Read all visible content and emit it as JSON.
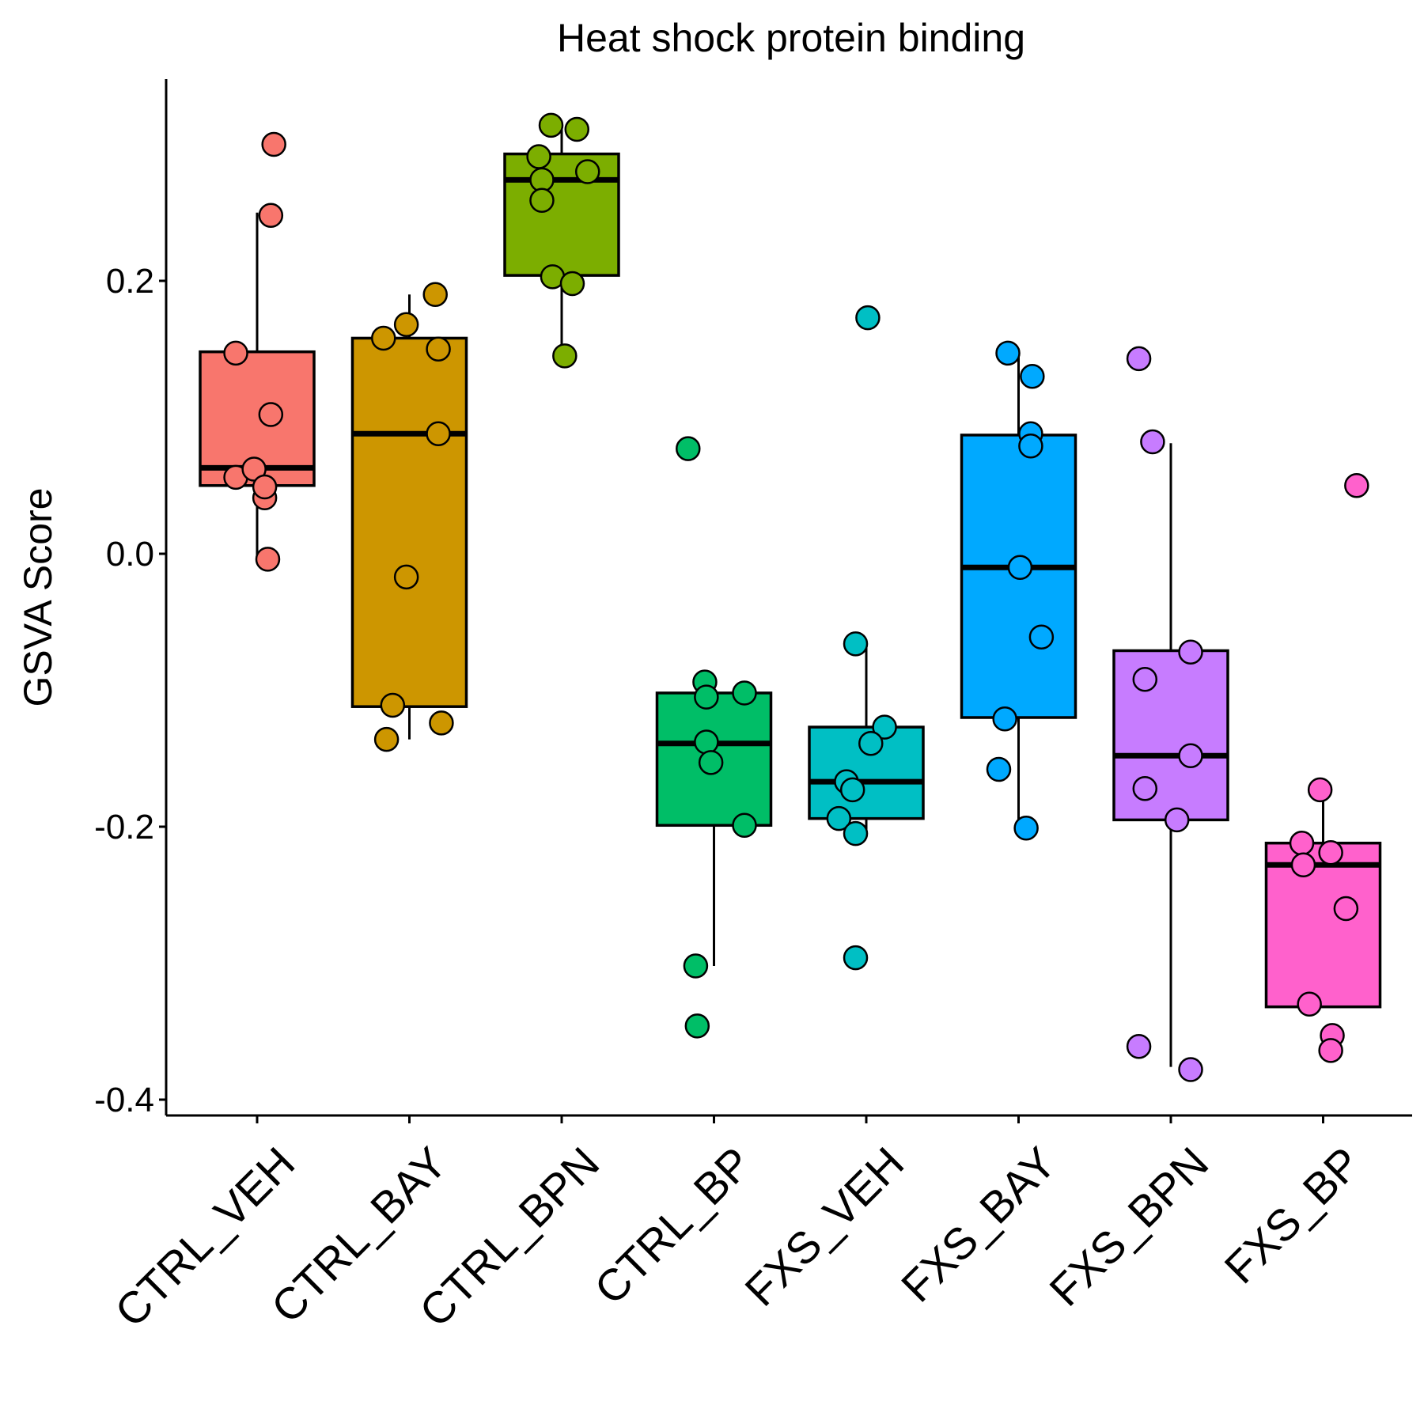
{
  "chart_data": {
    "type": "box",
    "title": "Heat shock protein binding",
    "xlabel": "",
    "ylabel": "GSVA Score",
    "ylim": [
      -0.41,
      0.35
    ],
    "yticks": [
      -0.4,
      -0.2,
      0.0,
      0.2
    ],
    "ytick_labels": [
      "-0.4",
      "-0.2",
      "0.0",
      "0.2"
    ],
    "grid": false,
    "legend": "none",
    "categories": [
      "CTRL_VEH",
      "CTRL_BAY",
      "CTRL_BPN",
      "CTRL_BP",
      "FXS_VEH",
      "FXS_BAY",
      "FXS_BPN",
      "FXS_BP"
    ],
    "colors": [
      "#F8766D",
      "#CD9600",
      "#7CAE00",
      "#00BE67",
      "#00BFC4",
      "#00A9FF",
      "#C77CFF",
      "#FF61CC"
    ],
    "boxes": [
      {
        "q1": 0.05,
        "median": 0.063,
        "q3": 0.148,
        "whisker_low": -0.004,
        "whisker_high": 0.25
      },
      {
        "q1": -0.112,
        "median": 0.088,
        "q3": 0.158,
        "whisker_low": -0.136,
        "whisker_high": 0.19
      },
      {
        "q1": 0.204,
        "median": 0.274,
        "q3": 0.293,
        "whisker_low": 0.145,
        "whisker_high": 0.314
      },
      {
        "q1": -0.199,
        "median": -0.139,
        "q3": -0.102,
        "whisker_low": -0.302,
        "whisker_high": -0.102
      },
      {
        "q1": -0.194,
        "median": -0.167,
        "q3": -0.127,
        "whisker_low": -0.205,
        "whisker_high": -0.066
      },
      {
        "q1": -0.12,
        "median": -0.01,
        "q3": 0.087,
        "whisker_low": -0.201,
        "whisker_high": 0.147
      },
      {
        "q1": -0.195,
        "median": -0.148,
        "q3": -0.071,
        "whisker_low": -0.376,
        "whisker_high": 0.081
      },
      {
        "q1": -0.332,
        "median": -0.228,
        "q3": -0.212,
        "whisker_low": -0.332,
        "whisker_high": -0.173
      }
    ],
    "points": [
      {
        "x_offset": [
          0.11,
          0.09,
          -0.14,
          0.09,
          -0.14,
          -0.02,
          0.05,
          0.05,
          0.07
        ],
        "values": [
          0.3,
          0.248,
          0.147,
          0.102,
          0.056,
          0.062,
          0.041,
          0.049,
          -0.004
        ]
      },
      {
        "x_offset": [
          0.17,
          -0.02,
          -0.17,
          0.19,
          0.19,
          -0.02,
          -0.11,
          -0.15,
          0.21
        ],
        "values": [
          0.19,
          0.168,
          0.158,
          0.15,
          0.088,
          -0.017,
          -0.111,
          -0.136,
          -0.124
        ]
      },
      {
        "x_offset": [
          -0.07,
          0.1,
          -0.15,
          0.17,
          -0.13,
          -0.13,
          -0.06,
          0.07,
          0.02
        ],
        "values": [
          0.314,
          0.311,
          0.291,
          0.28,
          0.274,
          0.259,
          0.203,
          0.198,
          0.145
        ]
      },
      {
        "x_offset": [
          -0.17,
          -0.06,
          -0.05,
          0.2,
          -0.05,
          -0.02,
          0.2,
          -0.12,
          -0.11
        ],
        "values": [
          0.077,
          -0.094,
          -0.105,
          -0.102,
          -0.138,
          -0.153,
          -0.199,
          -0.302,
          -0.346
        ]
      },
      {
        "x_offset": [
          0.01,
          -0.07,
          0.12,
          0.03,
          -0.13,
          -0.09,
          -0.18,
          -0.07,
          -0.07
        ],
        "values": [
          0.173,
          -0.066,
          -0.127,
          -0.139,
          -0.167,
          -0.173,
          -0.194,
          -0.205,
          -0.296
        ]
      },
      {
        "x_offset": [
          -0.07,
          0.09,
          0.08,
          0.08,
          0.01,
          0.15,
          -0.09,
          -0.13,
          0.05
        ],
        "values": [
          0.147,
          0.13,
          0.088,
          0.079,
          -0.01,
          -0.061,
          -0.121,
          -0.158,
          -0.201
        ]
      },
      {
        "x_offset": [
          -0.21,
          -0.12,
          0.13,
          -0.17,
          0.13,
          -0.17,
          0.04,
          -0.21,
          0.13
        ],
        "values": [
          0.143,
          0.082,
          -0.072,
          -0.092,
          -0.148,
          -0.172,
          -0.195,
          -0.361,
          -0.378
        ]
      },
      {
        "x_offset": [
          -0.02,
          -0.14,
          0.05,
          -0.13,
          0.15,
          -0.09,
          0.06,
          0.05,
          0.22
        ],
        "values": [
          -0.173,
          -0.212,
          -0.219,
          -0.228,
          -0.26,
          -0.33,
          -0.353,
          -0.364,
          0.05
        ]
      }
    ]
  }
}
